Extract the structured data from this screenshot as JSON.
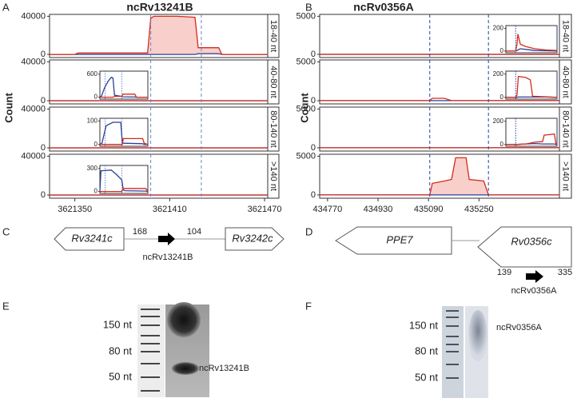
{
  "panel_labels": [
    "A",
    "B",
    "C",
    "D",
    "E",
    "F"
  ],
  "chart_data": [
    {
      "type": "line",
      "title": "ncRv13241B",
      "ylabel": "Count",
      "x": [
        3621334,
        3621350,
        3621352,
        3621396,
        3621398,
        3621400,
        3621415,
        3621426,
        3621428,
        3621441,
        3621443,
        3621472
      ],
      "xlim": [
        3621334,
        3621472
      ],
      "xticks": [
        3621350,
        3621410,
        3621470
      ],
      "vlines": [
        3621398,
        3621430
      ],
      "vline_color": "#6a85d0",
      "facets": [
        {
          "label": "18-40 nt",
          "ylim": [
            -3300,
            42000
          ],
          "yticks": [
            0,
            40000
          ],
          "series": [
            {
              "color": "#d42a1e",
              "fill": "#f8cfca",
              "values": [
                0,
                0,
                1500,
                1500,
                38000,
                40000,
                40000,
                39000,
                7000,
                7000,
                0,
                0
              ]
            },
            {
              "color": "#2b3f99",
              "values": [
                0,
                0,
                0,
                0,
                0,
                0,
                0,
                0,
                800,
                800,
                0,
                0
              ]
            }
          ]
        },
        {
          "label": "40-80 nt",
          "ylim": [
            -3300,
            42000
          ],
          "yticks": [
            0,
            40000
          ],
          "series": [
            {
              "color": "#d42a1e",
              "values": [
                0,
                0,
                0,
                0,
                0,
                0,
                0,
                0,
                0,
                0,
                0,
                0
              ]
            },
            {
              "color": "#2b3f99",
              "values": [
                0,
                0,
                0,
                0,
                0,
                0,
                0,
                0,
                0,
                0,
                0,
                0
              ]
            }
          ],
          "inset": {
            "ylim": [
              -50,
              680
            ],
            "yticks": [
              0,
              600
            ],
            "xlim": [
              3621388,
              3621480
            ],
            "x": [
              3621388,
              3621391,
              3621397,
              3621404,
              3621410,
              3621413,
              3621416,
              3621430,
              3621432,
              3621455,
              3621458,
              3621480
            ],
            "series": [
              {
                "color": "#d42a1e",
                "values": [
                  0,
                  0,
                  0,
                  0,
                  0,
                  0,
                  20,
                  20,
                  80,
                  80,
                  0,
                  0
                ]
              },
              {
                "color": "#2b3f99",
                "values": [
                  0,
                  30,
                  250,
                  420,
                  520,
                  500,
                  50,
                  20,
                  10,
                  5,
                  0,
                  0
                ]
              }
            ]
          }
        },
        {
          "label": "80-140 nt",
          "ylim": [
            -3300,
            42000
          ],
          "yticks": [
            0,
            40000
          ],
          "series": [
            {
              "color": "#d42a1e",
              "values": [
                0,
                0,
                0,
                0,
                0,
                0,
                0,
                0,
                0,
                0,
                0,
                0
              ]
            },
            {
              "color": "#2b3f99",
              "values": [
                0,
                0,
                0,
                0,
                0,
                0,
                0,
                0,
                0,
                0,
                0,
                0
              ]
            }
          ],
          "inset": {
            "ylim": [
              -8,
              112
            ],
            "yticks": [
              0,
              100
            ],
            "xlim": [
              3621388,
              3621480
            ],
            "x": [
              3621388,
              3621392,
              3621400,
              3621413,
              3621428,
              3621431,
              3621433,
              3621470,
              3621473,
              3621480
            ],
            "series": [
              {
                "color": "#d42a1e",
                "values": [
                  0,
                  0,
                  0,
                  0,
                  0,
                  0,
                  25,
                  25,
                  5,
                  0
                ]
              },
              {
                "color": "#2b3f99",
                "values": [
                  0,
                  5,
                  80,
                  95,
                  95,
                  10,
                  5,
                  3,
                  0,
                  0
                ]
              }
            ]
          }
        },
        {
          "label": ">140 nt",
          "ylim": [
            -3300,
            42000
          ],
          "yticks": [
            0,
            40000
          ],
          "series": [
            {
              "color": "#d42a1e",
              "values": [
                0,
                0,
                0,
                0,
                0,
                0,
                0,
                0,
                0,
                0,
                0,
                0
              ]
            },
            {
              "color": "#2b3f99",
              "values": [
                0,
                0,
                0,
                0,
                0,
                0,
                0,
                0,
                0,
                0,
                0,
                0
              ]
            }
          ],
          "inset": {
            "ylim": [
              -25,
              340
            ],
            "yticks": [
              0,
              300
            ],
            "xlim": [
              3621388,
              3621480
            ],
            "x": [
              3621388,
              3621390,
              3621410,
              3621420,
              3621430,
              3621433,
              3621436,
              3621476,
              3621480
            ],
            "series": [
              {
                "color": "#d42a1e",
                "values": [
                  0,
                  0,
                  0,
                  0,
                  0,
                  40,
                  40,
                  40,
                  0
                ]
              },
              {
                "color": "#2b3f99",
                "values": [
                  0,
                  270,
                  280,
                  220,
                  150,
                  20,
                  10,
                  5,
                  0
                ]
              }
            ]
          }
        }
      ]
    },
    {
      "type": "line",
      "title": "ncRv0356A",
      "ylabel": "Count",
      "x": [
        434745,
        435094,
        435102,
        435140,
        435163,
        435176,
        435209,
        435219,
        435265,
        435280,
        435505
      ],
      "xlim": [
        434745,
        435505
      ],
      "xticks": [
        434770,
        434930,
        435090,
        435250
      ],
      "vlines": [
        435094,
        435280
      ],
      "vline_color": "#2b3f99",
      "facets": [
        {
          "label": "18-40 nt",
          "ylim": [
            -420,
            5250
          ],
          "yticks": [
            0,
            5000
          ],
          "series": [
            {
              "color": "#d42a1e",
              "values": [
                0,
                0,
                0,
                0,
                0,
                0,
                0,
                0,
                0,
                0,
                0
              ]
            },
            {
              "color": "#2b3f99",
              "values": [
                0,
                0,
                0,
                0,
                0,
                0,
                0,
                0,
                0,
                0,
                0
              ]
            }
          ],
          "inset": {
            "ylim": [
              -15,
              225
            ],
            "yticks": [
              0,
              200
            ],
            "xlim": [
              435050,
              435280
            ],
            "x": [
              435050,
              435094,
              435100,
              435104,
              435115,
              435140,
              435180,
              435230,
              435280
            ],
            "series": [
              {
                "color": "#d42a1e",
                "values": [
                  0,
                  0,
                  60,
                  150,
                  60,
                  40,
                  20,
                  10,
                  5
                ]
              },
              {
                "color": "#2b3f99",
                "values": [
                  0,
                  0,
                  5,
                  10,
                  20,
                  15,
                  5,
                  3,
                  0
                ]
              }
            ]
          }
        },
        {
          "label": "40-80 nt",
          "ylim": [
            -420,
            5250
          ],
          "yticks": [
            0,
            5000
          ],
          "series": [
            {
              "color": "#d42a1e",
              "values": [
                0,
                0,
                300,
                300,
                0,
                0,
                0,
                0,
                0,
                0,
                0
              ]
            },
            {
              "color": "#2b3f99",
              "values": [
                0,
                0,
                0,
                0,
                0,
                0,
                0,
                0,
                0,
                0,
                0
              ]
            }
          ],
          "inset": {
            "ylim": [
              -15,
              225
            ],
            "yticks": [
              0,
              200
            ],
            "xlim": [
              435050,
              435280
            ],
            "x": [
              435050,
              435094,
              435100,
              435106,
              435140,
              435160,
              435170,
              435230,
              435280
            ],
            "series": [
              {
                "color": "#d42a1e",
                "values": [
                  0,
                  0,
                  20,
                  180,
                  170,
                  150,
                  10,
                  5,
                  0
                ]
              },
              {
                "color": "#2b3f99",
                "values": [
                  0,
                  0,
                  0,
                  3,
                  3,
                  3,
                  3,
                  3,
                  0
                ]
              }
            ]
          }
        },
        {
          "label": "80-140 nt",
          "ylim": [
            -420,
            5250
          ],
          "yticks": [
            0,
            5000
          ],
          "series": [
            {
              "color": "#d42a1e",
              "values": [
                0,
                0,
                0,
                0,
                0,
                0,
                0,
                0,
                0,
                0,
                0
              ]
            },
            {
              "color": "#2b3f99",
              "values": [
                0,
                0,
                0,
                0,
                0,
                0,
                0,
                0,
                0,
                0,
                0
              ]
            }
          ],
          "inset": {
            "ylim": [
              -15,
              225
            ],
            "yticks": [
              0,
              200
            ],
            "xlim": [
              435050,
              435280
            ],
            "x": [
              435050,
              435094,
              435140,
              435180,
              435215,
              435222,
              435268,
              435275,
              435280
            ],
            "series": [
              {
                "color": "#d42a1e",
                "values": [
                  0,
                  0,
                  5,
                  20,
                  25,
                  80,
                  90,
                  10,
                  0
                ]
              },
              {
                "color": "#2b3f99",
                "values": [
                  0,
                  0,
                  5,
                  8,
                  5,
                  5,
                  5,
                  0,
                  0
                ]
              }
            ]
          }
        },
        {
          "label": ">140 nt",
          "ylim": [
            -420,
            5250
          ],
          "yticks": [
            0,
            5000
          ],
          "series": [
            {
              "color": "#d42a1e",
              "fill": "#f8cfca",
              "values": [
                0,
                0,
                1500,
                1800,
                2000,
                4800,
                4800,
                2000,
                1800,
                0,
                0
              ]
            },
            {
              "color": "#2b3f99",
              "values": [
                0,
                0,
                0,
                0,
                0,
                0,
                0,
                0,
                0,
                0,
                0
              ]
            }
          ]
        }
      ]
    }
  ],
  "diagrams": [
    {
      "genes": [
        "Rv3241c",
        "Rv3242c"
      ],
      "lengths": [
        168,
        104
      ],
      "rna": "ncRv13241B"
    },
    {
      "genes": [
        "PPE7",
        "Rv0356c"
      ],
      "lengths": [
        139,
        335
      ],
      "rna": "ncRv0356A"
    }
  ],
  "gels": [
    {
      "markers": [
        "150 nt",
        "80 nt",
        "50 nt"
      ],
      "band": "ncRv13241B"
    },
    {
      "markers": [
        "150 nt",
        "80 nt",
        "50 nt"
      ],
      "band": "ncRv0356A"
    }
  ]
}
